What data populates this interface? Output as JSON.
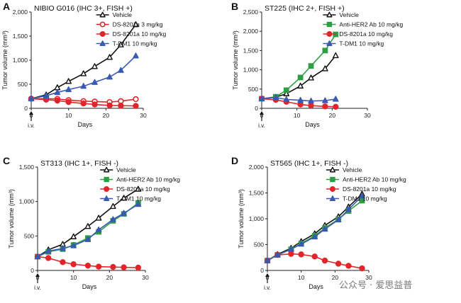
{
  "colors": {
    "vehicle": "#111111",
    "ds3": "#e0262a",
    "ds10": "#e0262a",
    "antiher2": "#2e9e43",
    "tdm1": "#3a5ab0",
    "axis": "#222222"
  },
  "watermark": "公众号 · 爱思益普",
  "chart_data": [
    {
      "type": "line",
      "panel": "A",
      "title": "NIBIO G016 (IHC 3+, FISH +)",
      "xlabel": "Days",
      "ylabel": "Tumor volume (mm³)",
      "dose_marker": "i.v.",
      "xlim": [
        0,
        30
      ],
      "ylim": [
        0,
        2000
      ],
      "xticks": [
        "0",
        "10",
        "20",
        "30"
      ],
      "yticks": [
        "0",
        "500",
        "1,000",
        "1,500",
        "2,000"
      ],
      "grid": false,
      "legend_position": "top-right",
      "series": [
        {
          "name": "Vehicle",
          "style": "vehicle",
          "x": [
            0,
            4,
            7,
            10,
            14,
            17,
            21,
            24,
            28
          ],
          "y": [
            200,
            280,
            430,
            560,
            720,
            870,
            1060,
            1320,
            1740
          ]
        },
        {
          "name": "DS-8201a 3 mg/kg",
          "style": "ds3",
          "x": [
            0,
            4,
            7,
            10,
            14,
            17,
            21,
            24,
            28
          ],
          "y": [
            200,
            200,
            195,
            170,
            150,
            140,
            130,
            150,
            190
          ]
        },
        {
          "name": "DS-8201a 10 mg/kg",
          "style": "ds10",
          "x": [
            0,
            4,
            7,
            10,
            14,
            17,
            21,
            24,
            28
          ],
          "y": [
            200,
            180,
            160,
            130,
            100,
            80,
            60,
            55,
            50
          ]
        },
        {
          "name": "T-DM1 10 mg/kg",
          "style": "tdm1",
          "x": [
            0,
            4,
            7,
            10,
            14,
            17,
            21,
            24,
            28
          ],
          "y": [
            200,
            260,
            330,
            390,
            460,
            540,
            650,
            790,
            1090
          ]
        }
      ]
    },
    {
      "type": "line",
      "panel": "B",
      "title": "ST225 (IHC 2+, FISH +)",
      "xlabel": "Days",
      "ylabel": "Tumor volume (mm³)",
      "dose_marker": "i.v.",
      "xlim": [
        0,
        30
      ],
      "ylim": [
        0,
        2500
      ],
      "xticks": [
        "0",
        "10",
        "20",
        "30"
      ],
      "yticks": [
        "0",
        "500",
        "1,000",
        "1,500",
        "2,000",
        "2,500"
      ],
      "grid": false,
      "legend_position": "top-right",
      "series": [
        {
          "name": "Vehicle",
          "style": "vehicle",
          "x": [
            0,
            4,
            7,
            11,
            14,
            18,
            21
          ],
          "y": [
            250,
            290,
            380,
            580,
            790,
            1030,
            1370
          ]
        },
        {
          "name": "Anti-HER2 Ab 10 mg/kg",
          "style": "antiher2",
          "x": [
            0,
            4,
            7,
            11,
            14,
            18,
            21
          ],
          "y": [
            250,
            300,
            470,
            800,
            1100,
            1500,
            1920
          ]
        },
        {
          "name": "DS-8201a 10 mg/kg",
          "style": "ds10",
          "x": [
            0,
            4,
            7,
            11,
            14,
            18,
            21
          ],
          "y": [
            250,
            220,
            170,
            100,
            70,
            50,
            40
          ]
        },
        {
          "name": "T-DM1 10 mg/kg",
          "style": "tdm1",
          "x": [
            0,
            4,
            7,
            11,
            14,
            18,
            21
          ],
          "y": [
            250,
            280,
            230,
            210,
            190,
            200,
            240
          ]
        }
      ]
    },
    {
      "type": "line",
      "panel": "C",
      "title": "ST313 (IHC 1+, FISH -)",
      "xlabel": "Days",
      "ylabel": "Tumor volume (mm³)",
      "dose_marker": "i.v.",
      "xlim": [
        0,
        30
      ],
      "ylim": [
        0,
        1500
      ],
      "xticks": [
        "0",
        "10",
        "20",
        "30"
      ],
      "yticks": [
        "0",
        "500",
        "1,000",
        "1,500"
      ],
      "grid": false,
      "legend_position": "top-right",
      "series": [
        {
          "name": "Vehicle",
          "style": "vehicle",
          "x": [
            0,
            3,
            7,
            10,
            14,
            17,
            21,
            24,
            28
          ],
          "y": [
            200,
            300,
            380,
            490,
            640,
            760,
            930,
            1050,
            1180
          ]
        },
        {
          "name": "Anti-HER2 Ab 10 mg/kg",
          "style": "antiher2",
          "x": [
            0,
            3,
            7,
            10,
            14,
            17,
            21,
            24,
            28
          ],
          "y": [
            200,
            270,
            310,
            370,
            470,
            560,
            720,
            820,
            980
          ]
        },
        {
          "name": "DS-8201a 10 mg/kg",
          "style": "ds10",
          "x": [
            0,
            3,
            7,
            10,
            14,
            17,
            21,
            24,
            28
          ],
          "y": [
            200,
            180,
            120,
            90,
            70,
            55,
            50,
            45,
            40
          ]
        },
        {
          "name": "T-DM1 10 mg/kg",
          "style": "tdm1",
          "x": [
            0,
            3,
            7,
            10,
            14,
            17,
            21,
            24,
            28
          ],
          "y": [
            200,
            280,
            320,
            360,
            450,
            590,
            740,
            830,
            960
          ]
        }
      ]
    },
    {
      "type": "line",
      "panel": "D",
      "title": "ST565 (IHC 1+, FISH -)",
      "xlabel": "Days",
      "ylabel": "Tumor volume (mm³)",
      "dose_marker": "i.v.",
      "xlim": [
        0,
        30
      ],
      "ylim": [
        0,
        2000
      ],
      "xticks": [
        "0",
        "10",
        "20",
        "30"
      ],
      "yticks": [
        "0",
        "500",
        "1,000",
        "1,500",
        "2,000"
      ],
      "grid": false,
      "legend_position": "top-right",
      "series": [
        {
          "name": "Vehicle",
          "style": "vehicle",
          "x": [
            0,
            3,
            7,
            10,
            14,
            17,
            21,
            24,
            28
          ],
          "y": [
            190,
            310,
            430,
            560,
            710,
            870,
            1040,
            1230,
            1480
          ]
        },
        {
          "name": "Anti-HER2 Ab 10 mg/kg",
          "style": "antiher2",
          "x": [
            0,
            3,
            7,
            10,
            14,
            17,
            21,
            24,
            28
          ],
          "y": [
            190,
            300,
            410,
            520,
            670,
            820,
            990,
            1150,
            1350
          ]
        },
        {
          "name": "DS-8201a 10 mg/kg",
          "style": "ds10",
          "x": [
            0,
            3,
            7,
            10,
            14,
            17,
            21,
            24,
            28
          ],
          "y": [
            190,
            300,
            320,
            310,
            270,
            190,
            130,
            90,
            40
          ]
        },
        {
          "name": "T-DM1 10 mg/kg",
          "style": "tdm1",
          "x": [
            0,
            3,
            7,
            10,
            14,
            17,
            21,
            24,
            28
          ],
          "y": [
            190,
            300,
            410,
            510,
            650,
            800,
            980,
            1180,
            1440
          ]
        }
      ]
    }
  ]
}
